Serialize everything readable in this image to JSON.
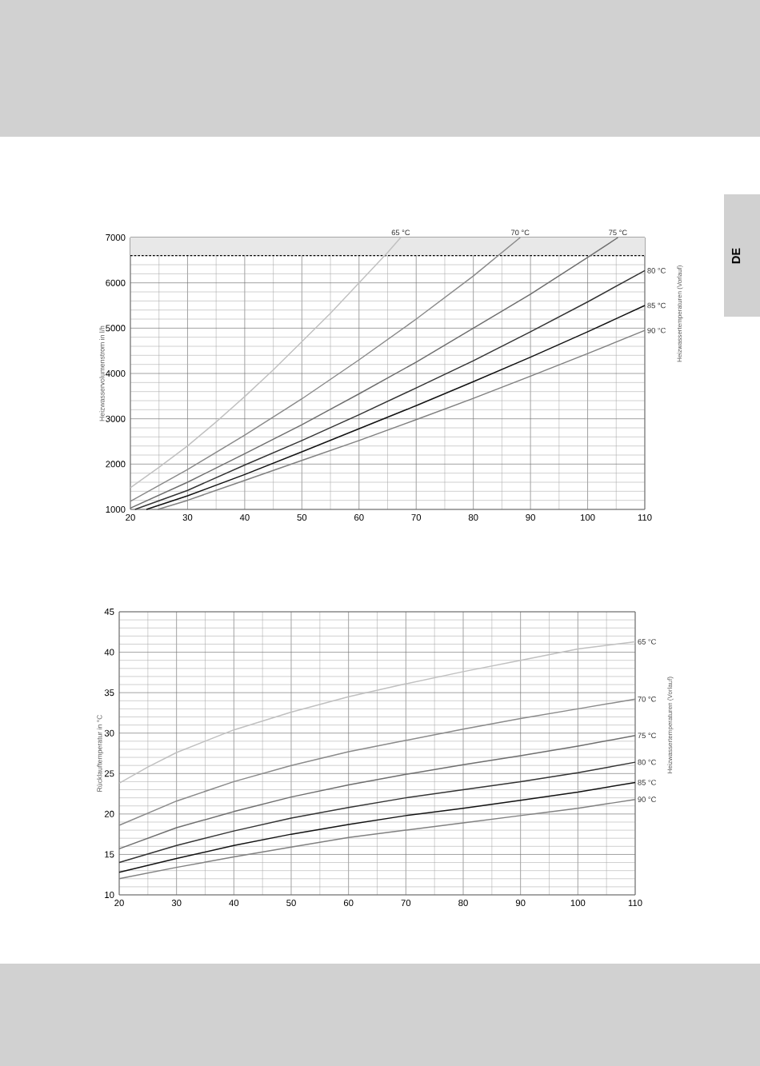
{
  "chart_data": [
    {
      "type": "line",
      "ylabel": "Heizwasservolumenstrom in l/h",
      "legend_title": "Heizwassertemperaturen (Vorlauf)",
      "xlim": [
        20,
        110
      ],
      "ylim": [
        1000,
        7000
      ],
      "xticks": [
        20,
        30,
        40,
        50,
        60,
        70,
        80,
        90,
        100,
        110
      ],
      "yticks": [
        1000,
        2000,
        3000,
        4000,
        5000,
        6000,
        7000
      ],
      "grid": true,
      "annotations": [
        "DE"
      ],
      "bands": [
        {
          "axis": "y",
          "from": 6600,
          "to": 7000,
          "color": "#e8e8e8"
        }
      ],
      "ref_lines": [
        {
          "axis": "y",
          "value": 6600,
          "color": "#000000",
          "line_style": "dashed"
        }
      ],
      "series": [
        {
          "name": "65 °C",
          "color": "#c0c0c0",
          "x": [
            20,
            25,
            30,
            35,
            40,
            45,
            50,
            55,
            60,
            65,
            67.3
          ],
          "values": [
            1480,
            1930,
            2400,
            2930,
            3490,
            4080,
            4700,
            5330,
            6000,
            6670,
            7000
          ]
        },
        {
          "name": "70 °C",
          "color": "#8a8a8a",
          "x": [
            20,
            30,
            40,
            50,
            60,
            70,
            80,
            88.2
          ],
          "values": [
            1180,
            1880,
            2640,
            3440,
            4300,
            5200,
            6150,
            7000
          ]
        },
        {
          "name": "75 °C",
          "color": "#6e6e6e",
          "x": [
            20,
            30,
            40,
            50,
            60,
            70,
            80,
            90,
            100,
            105.3
          ],
          "values": [
            1030,
            1600,
            2230,
            2870,
            3550,
            4250,
            5000,
            5750,
            6560,
            7000
          ]
        },
        {
          "name": "80 °C",
          "color": "#333333",
          "x": [
            20.8,
            30,
            40,
            50,
            60,
            70,
            80,
            90,
            100,
            110
          ],
          "values": [
            1000,
            1420,
            1980,
            2520,
            3090,
            3680,
            4280,
            4920,
            5580,
            6270
          ]
        },
        {
          "name": "85 °C",
          "color": "#111111",
          "x": [
            22.8,
            30,
            40,
            50,
            60,
            70,
            80,
            90,
            100,
            110
          ],
          "values": [
            1000,
            1300,
            1770,
            2270,
            2780,
            3290,
            3820,
            4360,
            4920,
            5500
          ]
        },
        {
          "name": "90 °C",
          "color": "#808080",
          "x": [
            24.8,
            30,
            40,
            50,
            60,
            70,
            80,
            90,
            100,
            110
          ],
          "values": [
            1000,
            1200,
            1640,
            2080,
            2520,
            2980,
            3450,
            3940,
            4440,
            4950
          ]
        }
      ]
    },
    {
      "type": "line",
      "ylabel": "Rücklauftemperatur in °C",
      "legend_title": "Heizwassertemperaturen (Vorlauf)",
      "xlim": [
        20,
        110
      ],
      "ylim": [
        10,
        45
      ],
      "xticks": [
        20,
        30,
        40,
        50,
        60,
        70,
        80,
        90,
        100,
        110
      ],
      "yticks": [
        10,
        15,
        20,
        25,
        30,
        35,
        40,
        45
      ],
      "grid": true,
      "series": [
        {
          "name": "65 °C",
          "color": "#c0c0c0",
          "x": [
            20,
            25,
            30,
            40,
            50,
            60,
            70,
            80,
            90,
            100,
            110
          ],
          "values": [
            23.8,
            25.8,
            27.6,
            30.4,
            32.6,
            34.5,
            36.1,
            37.6,
            39.0,
            40.4,
            41.3
          ]
        },
        {
          "name": "70 °C",
          "color": "#8a8a8a",
          "x": [
            20,
            30,
            40,
            50,
            60,
            70,
            80,
            90,
            100,
            110
          ],
          "values": [
            18.6,
            21.6,
            24.0,
            26.0,
            27.7,
            29.1,
            30.5,
            31.8,
            33.0,
            34.2
          ]
        },
        {
          "name": "75 °C",
          "color": "#6e6e6e",
          "x": [
            20,
            30,
            40,
            50,
            60,
            70,
            80,
            90,
            100,
            110
          ],
          "values": [
            15.7,
            18.3,
            20.3,
            22.1,
            23.6,
            24.9,
            26.1,
            27.2,
            28.4,
            29.7
          ]
        },
        {
          "name": "80 °C",
          "color": "#333333",
          "x": [
            20,
            30,
            40,
            50,
            60,
            70,
            80,
            90,
            100,
            110
          ],
          "values": [
            14.0,
            16.1,
            17.9,
            19.5,
            20.8,
            22.0,
            23.0,
            24.0,
            25.1,
            26.4
          ]
        },
        {
          "name": "85 °C",
          "color": "#111111",
          "x": [
            20,
            30,
            40,
            50,
            60,
            70,
            80,
            90,
            100,
            110
          ],
          "values": [
            12.8,
            14.5,
            16.1,
            17.5,
            18.7,
            19.8,
            20.7,
            21.7,
            22.7,
            23.9
          ]
        },
        {
          "name": "90 °C",
          "color": "#808080",
          "x": [
            20,
            30,
            40,
            50,
            60,
            70,
            80,
            90,
            100,
            110
          ],
          "values": [
            12.0,
            13.4,
            14.7,
            15.9,
            17.1,
            18.0,
            18.9,
            19.8,
            20.7,
            21.8
          ]
        }
      ]
    }
  ]
}
